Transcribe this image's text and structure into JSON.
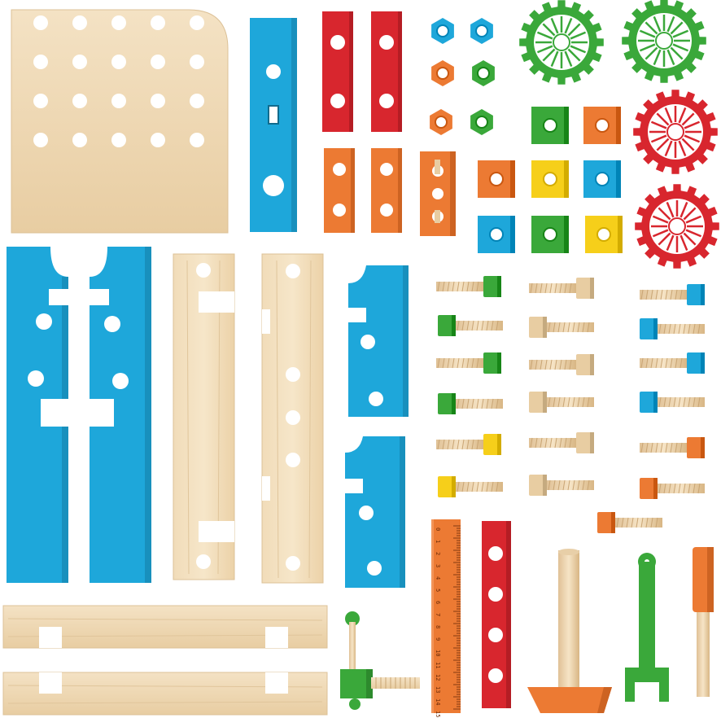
{
  "colors": {
    "background": "#ffffff",
    "wood_light": "#f3dfc0",
    "wood_mid": "#e9cfa5",
    "wood_grain": "#d9b98a",
    "blue": "#1ea7da",
    "red": "#d8262e",
    "orange": "#ec7a33",
    "green": "#3aa83a",
    "yellow": "#f6cf1a",
    "hole": "#ffffff"
  },
  "ruler": {
    "numbers": [
      "0",
      "1",
      "2",
      "3",
      "4",
      "5",
      "6",
      "7",
      "8",
      "9",
      "10",
      "11",
      "12",
      "13",
      "14",
      "15"
    ]
  },
  "pieces": {
    "gears": [
      "green",
      "green",
      "red",
      "red",
      "red"
    ],
    "nuts": [
      "blue",
      "blue",
      "orange",
      "green",
      "orange",
      "green"
    ],
    "square_nuts": [
      "green",
      "orange",
      "orange",
      "yellow",
      "blue",
      "blue",
      "green",
      "yellow"
    ],
    "screws_left": [
      "green",
      "green",
      "green",
      "green",
      "yellow",
      "yellow"
    ],
    "screws_middle": [
      "wood",
      "wood",
      "wood",
      "wood",
      "wood",
      "wood"
    ],
    "screws_right": [
      "blue",
      "blue",
      "blue",
      "blue",
      "orange",
      "orange",
      "orange"
    ],
    "tools": [
      "hammer",
      "wrench",
      "screwdriver",
      "ruler"
    ]
  }
}
